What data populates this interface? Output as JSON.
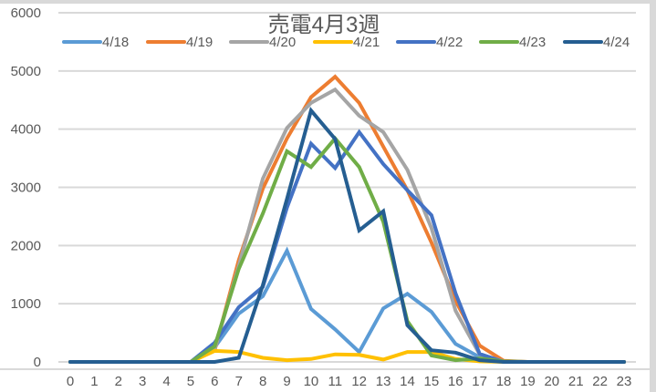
{
  "chart_data": {
    "type": "line",
    "title": "売電4月3週",
    "xlabel": "",
    "ylabel": "",
    "x": [
      0,
      1,
      2,
      3,
      4,
      5,
      6,
      7,
      8,
      9,
      10,
      11,
      12,
      13,
      14,
      15,
      16,
      17,
      18,
      19,
      20,
      21,
      22,
      23
    ],
    "x_tick_labels": [
      "0",
      "1",
      "2",
      "3",
      "4",
      "5",
      "6",
      "7",
      "8",
      "9",
      "10",
      "11",
      "12",
      "13",
      "14",
      "15",
      "16",
      "17",
      "18",
      "19",
      "20",
      "21",
      "22",
      "23"
    ],
    "ylim": [
      0,
      6000
    ],
    "y_ticks": [
      0,
      1000,
      2000,
      3000,
      4000,
      5000,
      6000
    ],
    "grid": true,
    "legend_position": "top",
    "series": [
      {
        "name": "4/18",
        "color": "#5b9bd5",
        "values": [
          0,
          0,
          0,
          0,
          0,
          0,
          250,
          830,
          1130,
          1910,
          910,
          560,
          170,
          920,
          1170,
          860,
          310,
          80,
          0,
          0,
          0,
          0,
          0,
          0
        ]
      },
      {
        "name": "4/19",
        "color": "#ed7d31",
        "values": [
          0,
          0,
          0,
          0,
          0,
          0,
          200,
          1750,
          2980,
          3840,
          4550,
          4900,
          4450,
          3700,
          2950,
          2050,
          1050,
          280,
          20,
          0,
          0,
          0,
          0,
          0
        ]
      },
      {
        "name": "4/20",
        "color": "#a5a5a5",
        "values": [
          0,
          0,
          0,
          0,
          0,
          0,
          220,
          1650,
          3150,
          4020,
          4450,
          4680,
          4230,
          3950,
          3300,
          2300,
          880,
          130,
          10,
          0,
          0,
          0,
          0,
          0
        ]
      },
      {
        "name": "4/21",
        "color": "#ffc000",
        "values": [
          0,
          0,
          0,
          0,
          0,
          0,
          190,
          170,
          70,
          30,
          50,
          130,
          120,
          40,
          170,
          170,
          50,
          10,
          0,
          0,
          0,
          0,
          0,
          0
        ]
      },
      {
        "name": "4/22",
        "color": "#4472c4",
        "values": [
          0,
          0,
          0,
          0,
          0,
          0,
          330,
          940,
          1290,
          2650,
          3750,
          3330,
          3950,
          3400,
          2950,
          2520,
          1180,
          140,
          0,
          0,
          0,
          0,
          0,
          0
        ]
      },
      {
        "name": "4/23",
        "color": "#70ad47",
        "values": [
          0,
          0,
          0,
          0,
          0,
          0,
          270,
          1600,
          2550,
          3620,
          3350,
          3840,
          3350,
          2410,
          700,
          110,
          30,
          60,
          10,
          0,
          0,
          0,
          0,
          0
        ]
      },
      {
        "name": "4/24",
        "color": "#255e91",
        "values": [
          0,
          0,
          0,
          0,
          0,
          0,
          0,
          70,
          1320,
          2800,
          4320,
          3830,
          2260,
          2590,
          630,
          200,
          160,
          30,
          0,
          0,
          0,
          0,
          0,
          0
        ]
      }
    ]
  }
}
